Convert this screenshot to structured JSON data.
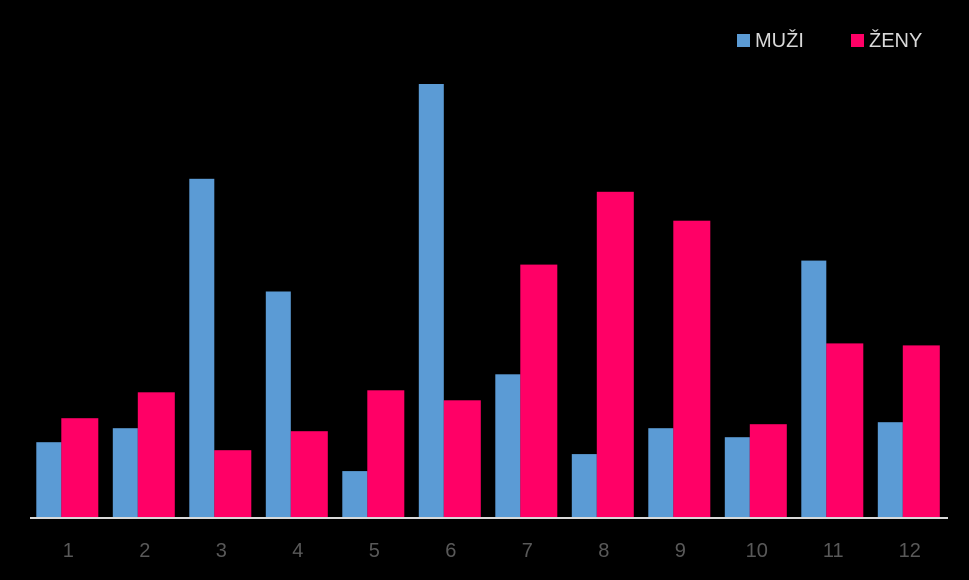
{
  "chart_data": {
    "type": "bar",
    "categories": [
      "1",
      "2",
      "3",
      "4",
      "5",
      "6",
      "7",
      "8",
      "9",
      "10",
      "11",
      "12"
    ],
    "series": [
      {
        "name": "MUŽI",
        "color": "#5b9bd5",
        "values": [
          76,
          90,
          340,
          227,
          47,
          435,
          144,
          64,
          90,
          81,
          258,
          96
        ]
      },
      {
        "name": "ŽENY",
        "color": "#ff0066",
        "values": [
          100,
          126,
          68,
          87,
          128,
          118,
          254,
          327,
          298,
          94,
          175,
          173
        ]
      }
    ],
    "ylim": [
      0,
      460
    ],
    "grid": false,
    "legend_position": "top-right",
    "colors": {
      "background": "#000000",
      "axis_line": "#d9d9d9",
      "tick_text": "#595959",
      "legend_text": "#d9d9d9"
    }
  }
}
